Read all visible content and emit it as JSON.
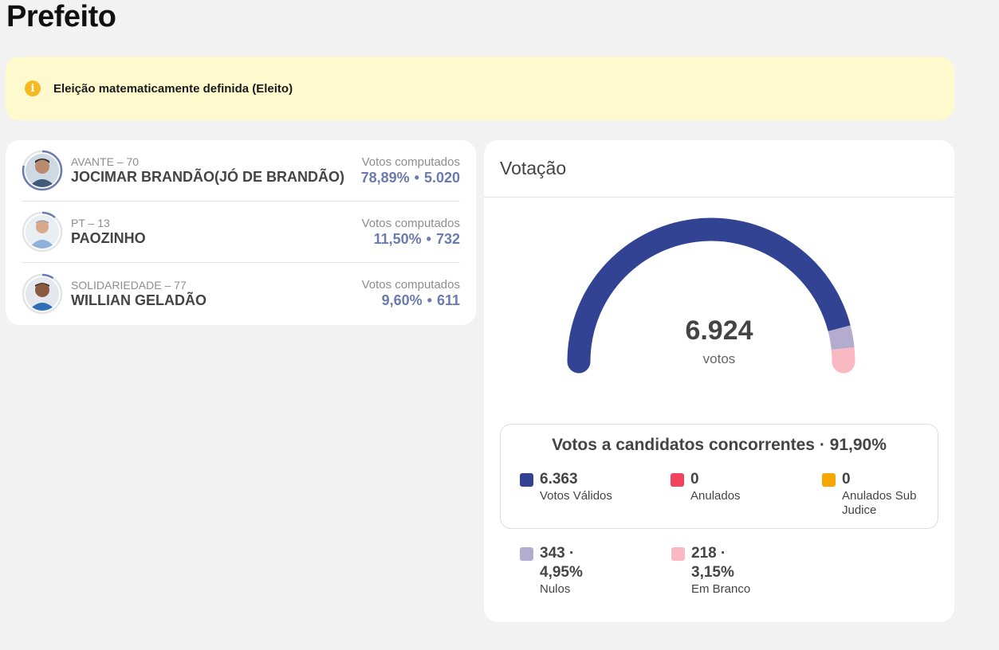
{
  "page": {
    "title": "Prefeito"
  },
  "alert": {
    "icon": "info-icon",
    "text": "Eleição matematicamente definida (Eleito)",
    "icon_glyph": "i"
  },
  "candidates": [
    {
      "party": "AVANTE – 70",
      "name": "JOCIMAR BRANDÃO(JÓ DE BRANDÃO)",
      "votes_label": "Votos computados",
      "percent": "78,89%",
      "dot": "•",
      "votes": "5.020",
      "share": 0.7889
    },
    {
      "party": "PT – 13",
      "name": "PAOZINHO",
      "votes_label": "Votos computados",
      "percent": "11,50%",
      "dot": "•",
      "votes": "732",
      "share": 0.115
    },
    {
      "party": "SOLIDARIEDADE – 77",
      "name": "WILLIAN GELADÃO",
      "votes_label": "Votos computados",
      "percent": "9,60%",
      "dot": "•",
      "votes": "611",
      "share": 0.096
    }
  ],
  "votacao": {
    "title": "Votação",
    "total": "6.924",
    "unit": "votos",
    "gauge_shares": {
      "validos": 0.919,
      "nulos": 0.0495,
      "brancos": 0.0315
    },
    "concurrent_title": "Votos a candidatos concorrentes · 91,90%",
    "legend": [
      {
        "value": "6.363",
        "label": "Votos Válidos",
        "color": "#314392"
      },
      {
        "value": "0",
        "label": "Anulados",
        "color": "#f0445c"
      },
      {
        "value": "0",
        "label": "Anulados Sub Judice",
        "color": "#f5a700"
      }
    ],
    "others": [
      {
        "value": "343 · 4,95%",
        "label": "Nulos",
        "color": "#b3accf"
      },
      {
        "value": "218 · 3,15%",
        "label": "Em Branco",
        "color": "#f9b9c3"
      }
    ]
  },
  "colors": {
    "ring": "#6b7ab0",
    "ring_track": "#e4e4e4"
  }
}
